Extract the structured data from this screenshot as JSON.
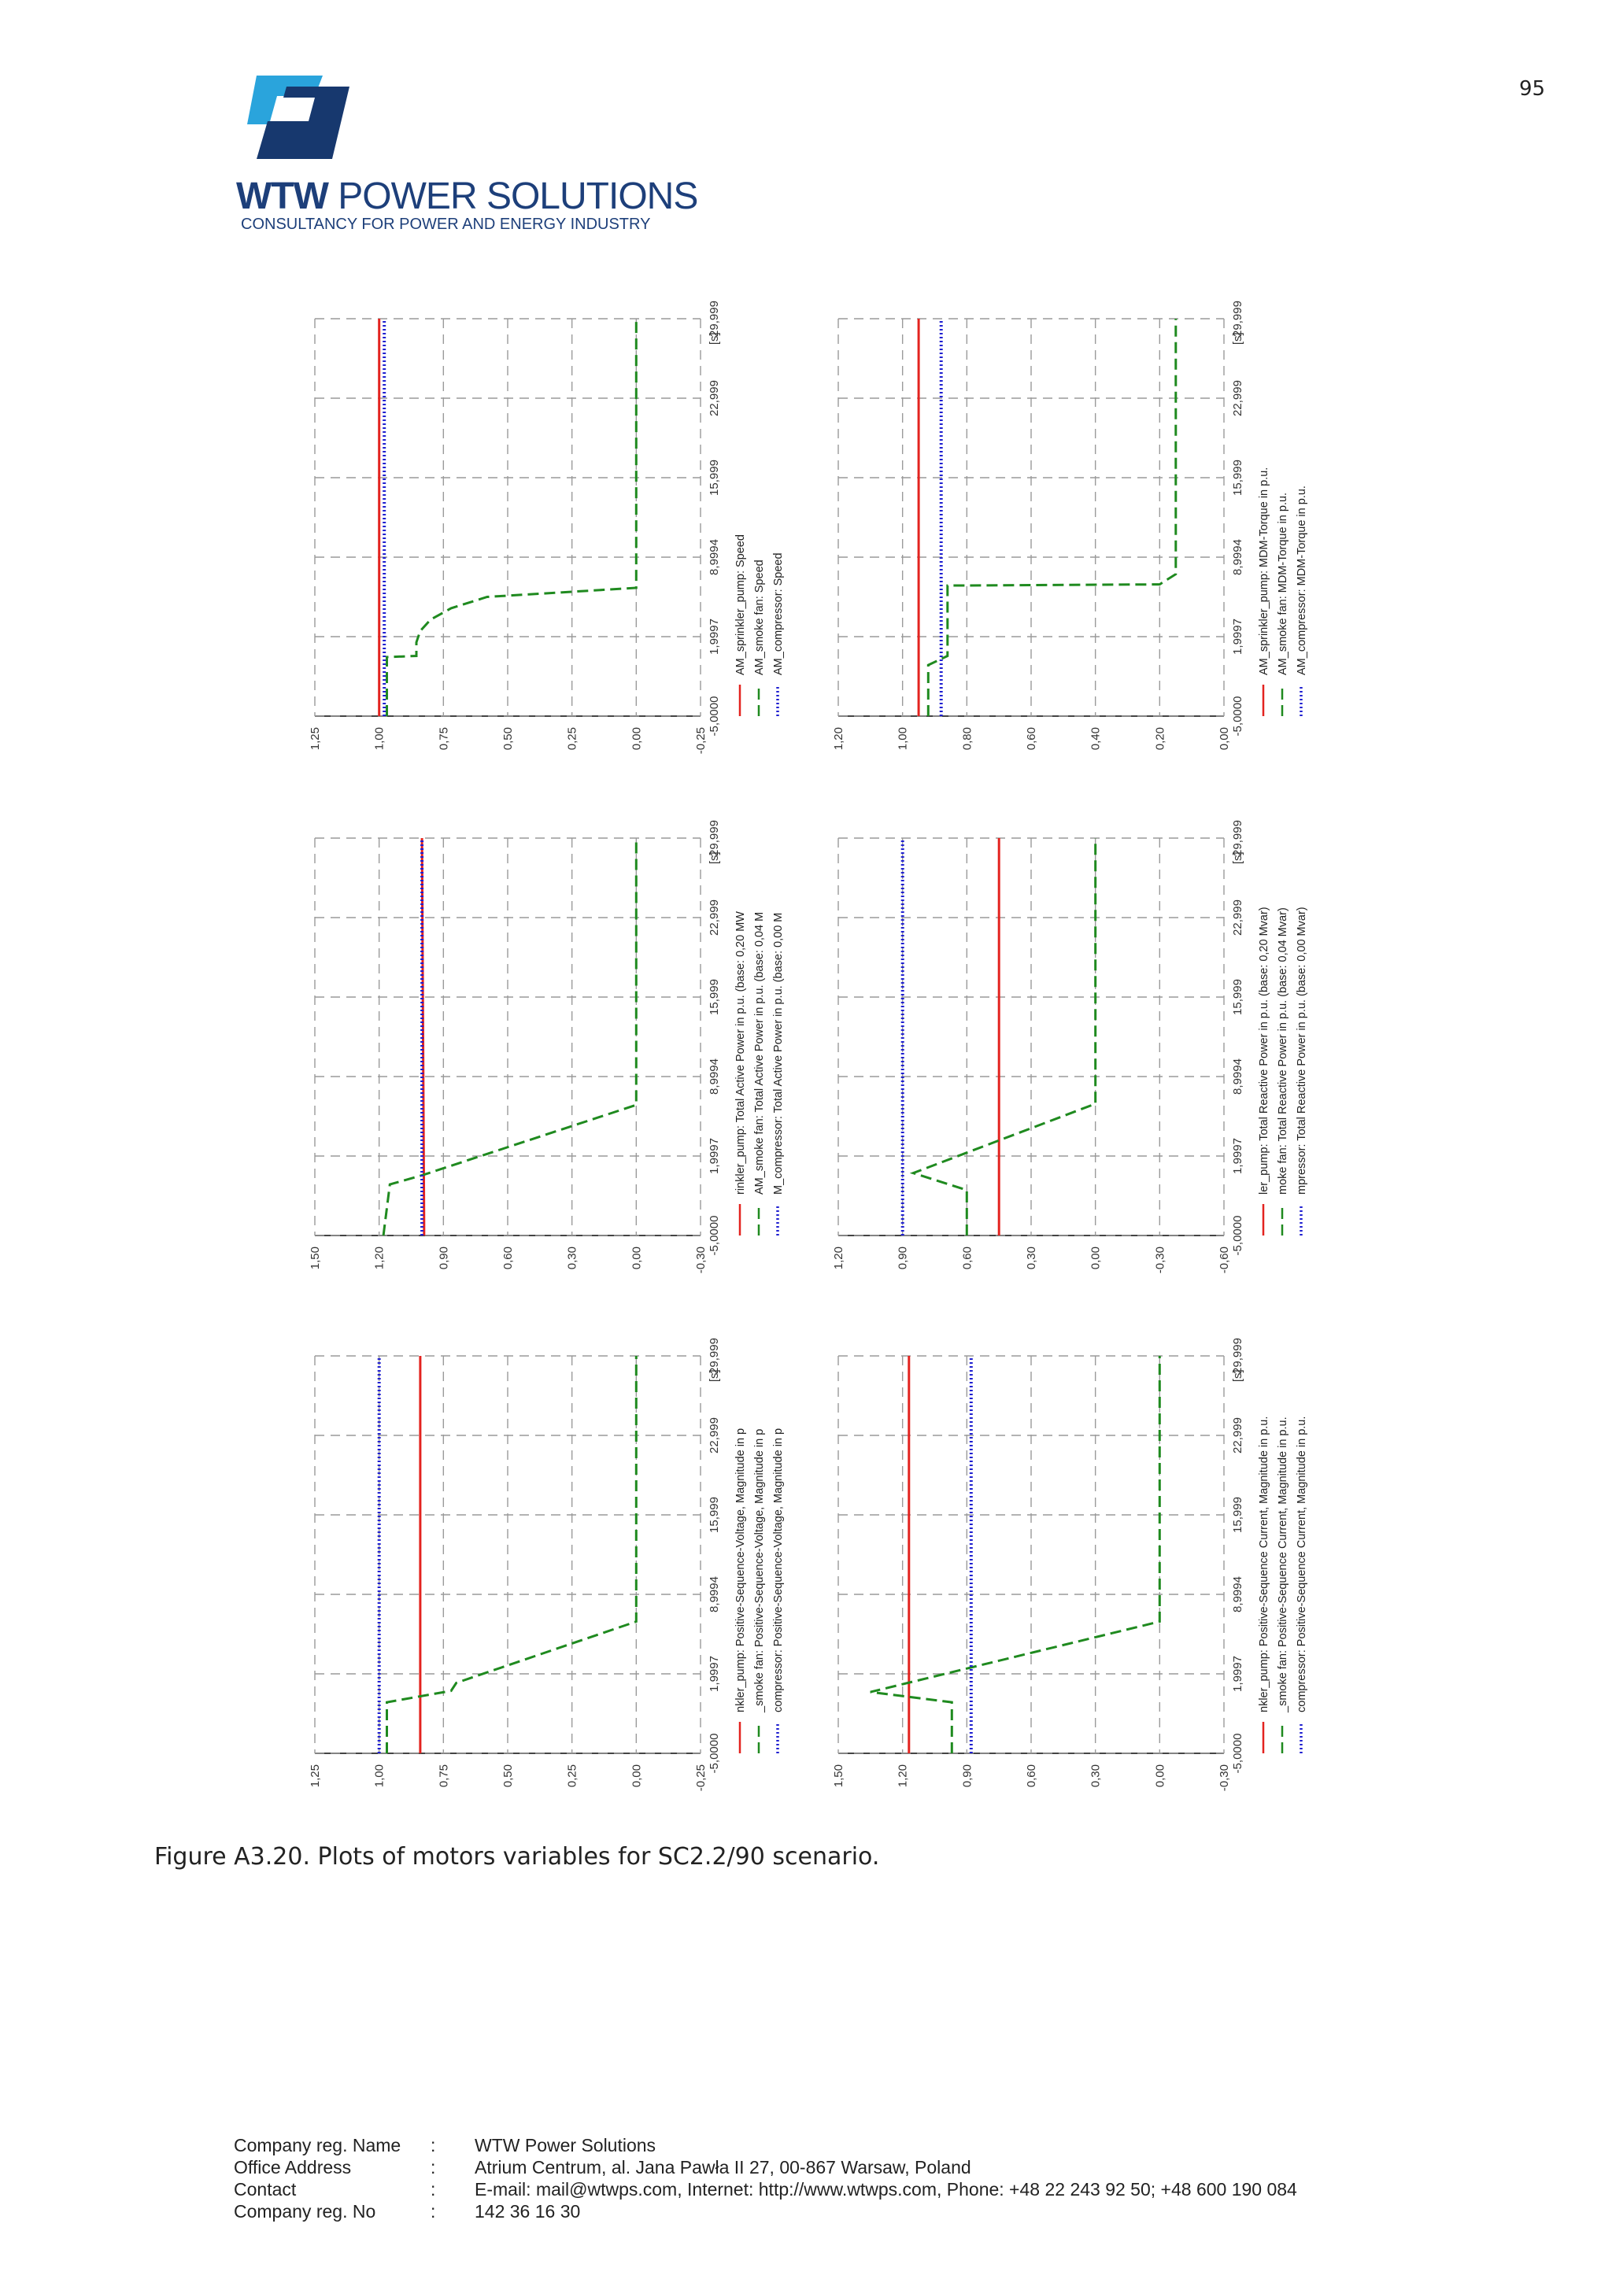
{
  "page_number": "95",
  "company": {
    "logo_bold": "WTW",
    "logo_light": " POWER SOLUTIONS",
    "tagline": "CONSULTANCY FOR POWER AND ENERGY INDUSTRY"
  },
  "colors": {
    "red": "#e3231f",
    "green": "#1f8a1f",
    "blue": "#1f1fd0",
    "logo_light": "#2aa4dc",
    "logo_dark": "#17386e"
  },
  "chart_data": [
    {
      "type": "line",
      "title": "Speed",
      "x_ticks": [
        "-5,0000",
        "1,9997",
        "8,9994",
        "15,999",
        "22,999",
        "29,999"
      ],
      "x_unit": "[s]",
      "y_ticks": [
        "1,25",
        "1,00",
        "0,75",
        "0,50",
        "0,25",
        "0,00",
        "-0,25"
      ],
      "ylim": [
        -0.25,
        1.25
      ],
      "legend": [
        "AM_sprinkler_pump: Speed",
        "AM_smoke fan: Speed",
        "AM_compressor: Speed"
      ],
      "series": [
        {
          "name": "AM_sprinkler_pump",
          "x": [
            -5,
            29.999
          ],
          "y": [
            1.0,
            1.0
          ]
        },
        {
          "name": "AM_smoke fan",
          "x": [
            -5,
            0.2,
            0.3,
            1.5,
            2.5,
            3.5,
            4.5,
            5.5,
            6.3,
            29.999
          ],
          "y": [
            0.97,
            0.97,
            0.855,
            0.855,
            0.84,
            0.8,
            0.72,
            0.58,
            0.0,
            0.0
          ]
        },
        {
          "name": "AM_compressor",
          "x": [
            -5,
            29.999
          ],
          "y": [
            0.98,
            0.98
          ]
        }
      ]
    },
    {
      "type": "line",
      "title": "MDM-Torque",
      "x_ticks": [
        "-5,0000",
        "1,9997",
        "8,9994",
        "15,999",
        "22,999",
        "29,999"
      ],
      "x_unit": "[s]",
      "y_ticks": [
        "1,20",
        "1,00",
        "0,80",
        "0,60",
        "0,40",
        "0,20",
        "0,00"
      ],
      "ylim": [
        0.0,
        1.2
      ],
      "legend": [
        "AM_sprinkler_pump: MDM-Torque in p.u.",
        "AM_smoke fan: MDM-Torque in p.u.",
        "AM_compressor: MDM-Torque in p.u."
      ],
      "series": [
        {
          "name": "AM_sprinkler_pump",
          "x": [
            -5,
            29.999
          ],
          "y": [
            0.95,
            0.95
          ]
        },
        {
          "name": "AM_smoke fan",
          "x": [
            -5,
            -0.5,
            0.3,
            6.5,
            6.6,
            7.5,
            8.0,
            29.999
          ],
          "y": [
            0.92,
            0.92,
            0.86,
            0.86,
            0.2,
            0.15,
            0.15,
            0.15
          ]
        },
        {
          "name": "AM_compressor",
          "x": [
            -5,
            29.999
          ],
          "y": [
            0.88,
            0.88
          ]
        }
      ]
    },
    {
      "type": "line",
      "title": "Total Active Power",
      "x_ticks": [
        "-5,0000",
        "1,9997",
        "8,9994",
        "15,999",
        "22,999",
        "29,999"
      ],
      "x_unit": "[s]",
      "y_ticks": [
        "1,50",
        "1,20",
        "0,90",
        "0,60",
        "0,30",
        "0,00",
        "-0,30"
      ],
      "ylim": [
        -0.3,
        1.5
      ],
      "legend": [
        "rinkler_pump: Total Active Power in p.u. (base: 0,20 MW",
        "AM_smoke fan: Total Active Power in p.u. (base: 0,04 M",
        "M_compressor: Total Active Power in p.u. (base: 0,00 M"
      ],
      "series": [
        {
          "name": "AM_sprinkler_pump",
          "x": [
            -5,
            -4,
            29.999
          ],
          "y": [
            0.99,
            0.99,
            1.0
          ]
        },
        {
          "name": "AM_smoke fan",
          "x": [
            -5,
            -0.5,
            0.3,
            6.5,
            29.999
          ],
          "y": [
            1.18,
            1.15,
            1.0,
            0.0,
            0.0
          ]
        },
        {
          "name": "AM_compressor",
          "x": [
            -5,
            29.999
          ],
          "y": [
            1.0,
            1.0
          ]
        }
      ]
    },
    {
      "type": "line",
      "title": "Total Reactive Power",
      "x_ticks": [
        "-5,0000",
        "1,9997",
        "8,9994",
        "15,999",
        "22,999",
        "29,999"
      ],
      "x_unit": "[s]",
      "y_ticks": [
        "1,20",
        "0,90",
        "0,60",
        "0,30",
        "0,00",
        "-0,30",
        "-0,60"
      ],
      "ylim": [
        -0.6,
        1.2
      ],
      "legend": [
        "ler_pump: Total Reactive Power in p.u. (base: 0,20 Mvar)",
        "moke fan: Total Reactive Power in p.u. (base: 0,04 Mvar)",
        "mpressor: Total Reactive Power in p.u. (base: 0,00 Mvar)"
      ],
      "series": [
        {
          "name": "AM_sprinkler_pump",
          "x": [
            -5,
            29.999
          ],
          "y": [
            0.45,
            0.45
          ]
        },
        {
          "name": "AM_smoke fan",
          "x": [
            -5,
            -1,
            0.5,
            6.6,
            29.999
          ],
          "y": [
            0.6,
            0.6,
            0.85,
            0.0,
            0.0
          ]
        },
        {
          "name": "AM_compressor",
          "x": [
            -5,
            29.999
          ],
          "y": [
            0.9,
            0.9
          ]
        }
      ]
    },
    {
      "type": "line",
      "title": "Positive-Sequence-Voltage",
      "x_ticks": [
        "-5,0000",
        "1,9997",
        "8,9994",
        "15,999",
        "22,999",
        "29,999"
      ],
      "x_unit": "[s]",
      "y_ticks": [
        "1,25",
        "1,00",
        "0,75",
        "0,50",
        "0,25",
        "0,00",
        "-0,25"
      ],
      "ylim": [
        -0.25,
        1.25
      ],
      "legend": [
        "nkler_pump: Positive-Sequence-Voltage, Magnitude in p",
        "_smoke fan: Positive-Sequence-Voltage, Magnitude in p",
        "compressor: Positive-Sequence-Voltage, Magnitude in p"
      ],
      "series": [
        {
          "name": "AM_sprinkler_pump",
          "x": [
            -5,
            29.999
          ],
          "y": [
            0.84,
            0.84
          ]
        },
        {
          "name": "AM_smoke fan",
          "x": [
            -5,
            -0.5,
            0.5,
            1.2,
            6.6,
            29.999
          ],
          "y": [
            0.97,
            0.97,
            0.72,
            0.7,
            0.0,
            0.0
          ]
        },
        {
          "name": "AM_compressor",
          "x": [
            -5,
            29.999
          ],
          "y": [
            1.0,
            1.0
          ]
        }
      ]
    },
    {
      "type": "line",
      "title": "Positive-Sequence Current",
      "x_ticks": [
        "-5,0000",
        "1,9997",
        "8,9994",
        "15,999",
        "22,999",
        "29,999"
      ],
      "x_unit": "[s]",
      "y_ticks": [
        "1,50",
        "1,20",
        "0,90",
        "0,60",
        "0,30",
        "0,00",
        "-0,30"
      ],
      "ylim": [
        -0.3,
        1.5
      ],
      "legend": [
        "nkler_pump: Positive-Sequence Current, Magnitude in p.u.",
        "_smoke fan: Positive-Sequence Current, Magnitude in p.u.",
        "compressor: Positive-Sequence Current, Magnitude in p.u."
      ],
      "series": [
        {
          "name": "AM_sprinkler_pump",
          "x": [
            -5,
            29.999
          ],
          "y": [
            1.17,
            1.17
          ]
        },
        {
          "name": "AM_smoke fan",
          "x": [
            -5,
            -0.5,
            0.4,
            6.6,
            29.999
          ],
          "y": [
            0.97,
            0.97,
            1.35,
            0.0,
            0.0
          ]
        },
        {
          "name": "AM_compressor",
          "x": [
            -5,
            29.999
          ],
          "y": [
            0.88,
            0.88
          ]
        }
      ]
    }
  ],
  "caption": "Figure A3.20. Plots of motors variables for SC2.2/90 scenario.",
  "footer": {
    "rows": [
      {
        "label": "Company reg. Name",
        "sep": ":",
        "value": "WTW Power Solutions"
      },
      {
        "label": "Office Address",
        "sep": ":",
        "value": "Atrium Centrum, al. Jana Pawła II 27, 00-867 Warsaw, Poland"
      },
      {
        "label": "Contact",
        "sep": ":",
        "value": "E-mail: mail@wtwps.com, Internet: http://www.wtwps.com, Phone: +48 22 243 92 50; +48 600 190 084"
      },
      {
        "label": "Company reg. No",
        "sep": ":",
        "value": "142 36 16 30"
      }
    ]
  }
}
